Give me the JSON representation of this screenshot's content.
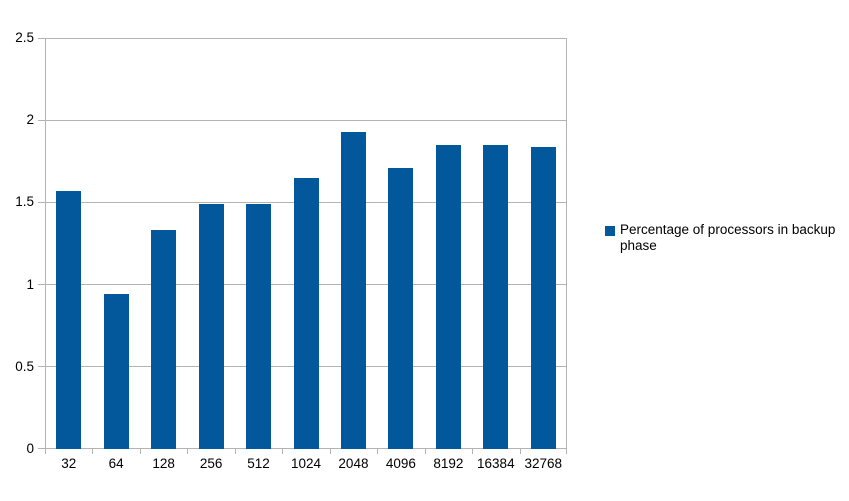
{
  "chart_data": {
    "type": "bar",
    "title": "",
    "xlabel": "",
    "ylabel": "",
    "categories": [
      "32",
      "64",
      "128",
      "256",
      "512",
      "1024",
      "2048",
      "4096",
      "8192",
      "16384",
      "32768"
    ],
    "values": [
      1.57,
      0.94,
      1.33,
      1.49,
      1.49,
      1.65,
      1.93,
      1.71,
      1.85,
      1.85,
      1.84
    ],
    "series_name": "Percentage of processors in backup phase",
    "ylim": [
      0,
      2.5
    ],
    "y_ticks": [
      0,
      0.5,
      1,
      1.5,
      2,
      2.5
    ],
    "y_tick_labels": [
      "0",
      "0.5",
      "1",
      "1.5",
      "2",
      "2.5"
    ],
    "grid": true,
    "legend_position": "right",
    "colors": {
      "bar": "#03589C",
      "grid": "#b3b3b3",
      "text": "#000000",
      "background": "#ffffff"
    }
  },
  "legend": {
    "label": "Percentage of processors in backup phase"
  }
}
